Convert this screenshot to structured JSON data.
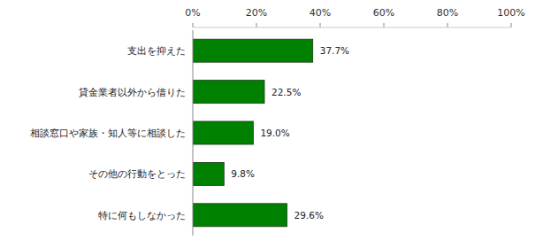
{
  "chart_data": {
    "type": "bar",
    "orientation": "horizontal",
    "categories": [
      "支出を抑えた",
      "貸金業者以外から借りた",
      "相談窓口や家族・知人等に相談した",
      "その他の行動をとった",
      "特に何もしなかった"
    ],
    "values": [
      37.7,
      22.5,
      19.0,
      9.8,
      29.6
    ],
    "value_labels": [
      "37.7%",
      "22.5%",
      "19.0%",
      "9.8%",
      "29.6%"
    ],
    "color": "#008000",
    "data_labels": true,
    "grid": false,
    "xlim": [
      0,
      100
    ],
    "xticks": [
      {
        "value": 0,
        "label": "0%"
      },
      {
        "value": 20,
        "label": "20%"
      },
      {
        "value": 40,
        "label": "40%"
      },
      {
        "value": 60,
        "label": "60%"
      },
      {
        "value": 80,
        "label": "80%"
      },
      {
        "value": 100,
        "label": "100%"
      }
    ]
  }
}
